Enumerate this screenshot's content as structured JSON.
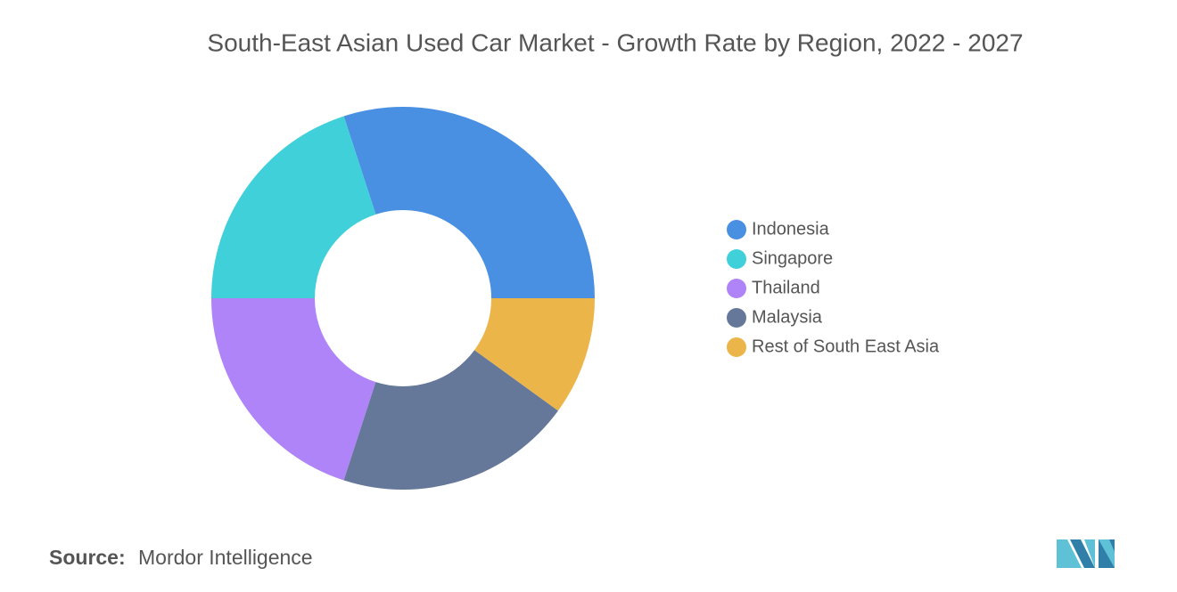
{
  "chart_data": {
    "type": "donut",
    "title": "South-East Asian Used Car Market - Growth Rate by Region, 2022 - 2027",
    "categories": [
      "Indonesia",
      "Singapore",
      "Thailand",
      "Malaysia",
      "Rest of South East Asia"
    ],
    "values": [
      30,
      20,
      20,
      20,
      10
    ],
    "colors": [
      "#4a90e2",
      "#40d0da",
      "#b084f9",
      "#657899",
      "#ecb54a"
    ],
    "legend_position": "right",
    "source_label": "Source:",
    "source": "Mordor Intelligence"
  }
}
